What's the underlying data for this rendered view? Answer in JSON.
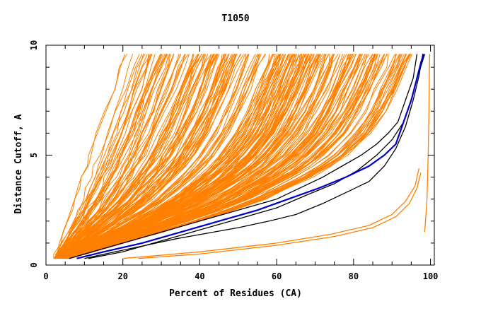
{
  "chart_data": {
    "type": "line",
    "title": "T1050",
    "xlabel": "Percent of Residues (CA)",
    "ylabel": "Distance Cutoff, A",
    "xlim": [
      0,
      101
    ],
    "ylim": [
      0,
      10
    ],
    "xticks": [
      0,
      20,
      40,
      60,
      80,
      100
    ],
    "yticks": [
      0,
      5,
      10
    ],
    "x_minor_step": 5,
    "y_minor_step": 1,
    "grid": false,
    "colors": {
      "background_models": "#ff8000",
      "reference_models": "#000000",
      "highlight_model": "#0000cc"
    },
    "background_series_count": 250,
    "background_series_description_values": {
      "cutoffs": [
        0.3,
        0.5,
        1,
        1.5,
        2,
        2.5,
        3,
        3.5,
        4,
        4.5,
        5,
        6,
        7,
        8,
        9,
        9.6
      ],
      "envelope_fast": [
        2.0,
        2.5,
        3.5,
        4.5,
        5.5,
        6.5,
        7.5,
        8.5,
        9.5,
        10.5,
        11.5,
        13.5,
        15.5,
        17.5,
        19.5,
        21.0
      ],
      "envelope_slow": [
        6.0,
        10.0,
        20.0,
        30.0,
        40.0,
        49.0,
        57.0,
        63.0,
        69.0,
        74.0,
        78.0,
        84.0,
        88.0,
        91.0,
        93.5,
        95.0
      ]
    },
    "series": [
      {
        "role": "highlight",
        "x": [
          8,
          15,
          25,
          35,
          45,
          55,
          63,
          71,
          78,
          84,
          88,
          91,
          93,
          95,
          96.5,
          97.5,
          98.2
        ],
        "y": [
          0.3,
          0.6,
          1.0,
          1.5,
          2.0,
          2.5,
          3.0,
          3.5,
          4.0,
          4.5,
          5.0,
          5.5,
          6.5,
          7.5,
          8.5,
          9.2,
          9.6
        ]
      },
      {
        "role": "reference",
        "x": [
          6,
          12,
          20,
          30,
          40,
          50,
          60,
          66,
          72,
          77,
          82,
          86,
          89,
          91.5,
          93.5,
          95.5,
          96.5
        ],
        "y": [
          0.3,
          0.6,
          1.0,
          1.5,
          2.0,
          2.5,
          3.0,
          3.5,
          4.0,
          4.5,
          5.0,
          5.5,
          6.0,
          6.5,
          7.5,
          8.5,
          9.6
        ]
      },
      {
        "role": "reference",
        "x": [
          10,
          18,
          26,
          34,
          42,
          50,
          58,
          65,
          72,
          78,
          84,
          88,
          91,
          93.5,
          95.5,
          97,
          98
        ],
        "y": [
          0.3,
          0.6,
          0.9,
          1.2,
          1.45,
          1.7,
          2.0,
          2.3,
          2.8,
          3.3,
          3.8,
          4.5,
          5.3,
          6.3,
          7.5,
          8.6,
          9.6
        ]
      },
      {
        "role": "reference",
        "x": [
          11,
          20,
          30,
          40,
          50,
          60,
          68,
          75,
          81,
          86,
          90,
          93,
          95,
          96.5,
          97.8,
          98.5
        ],
        "y": [
          0.3,
          0.6,
          1.1,
          1.6,
          2.1,
          2.6,
          3.2,
          3.7,
          4.3,
          5.0,
          5.7,
          6.5,
          7.5,
          8.5,
          9.2,
          9.6
        ]
      },
      {
        "role": "outlier",
        "x": [
          24,
          40,
          60,
          75,
          85,
          91,
          94.5,
          96.5,
          97.5
        ],
        "y": [
          0.3,
          0.5,
          0.9,
          1.3,
          1.7,
          2.2,
          2.8,
          3.5,
          4.2
        ]
      },
      {
        "role": "outlier",
        "x": [
          20,
          40,
          60,
          74,
          84,
          90,
          93.5,
          96,
          97
        ],
        "y": [
          0.3,
          0.6,
          1.0,
          1.4,
          1.8,
          2.3,
          2.9,
          3.6,
          4.4
        ]
      },
      {
        "role": "outlier",
        "x": [
          98.5,
          99.1,
          99.4,
          99.6,
          99.7,
          99.8
        ],
        "y": [
          1.5,
          3.0,
          5.0,
          7.0,
          8.5,
          9.6
        ]
      }
    ]
  }
}
